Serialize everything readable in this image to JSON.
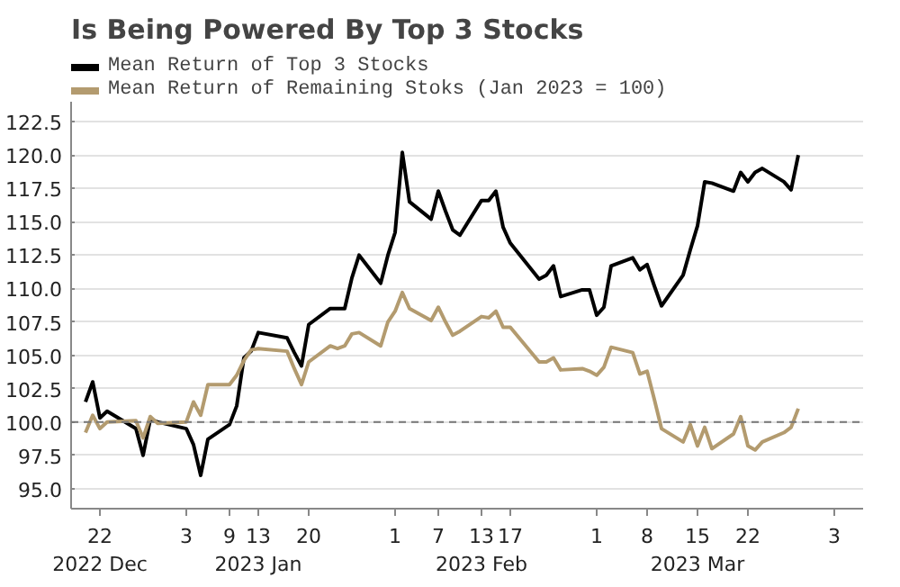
{
  "chart_data": {
    "type": "line",
    "title": "Is Being Powered By Top 3 Stocks",
    "x": [
      "2022-12-20",
      "2022-12-21",
      "2022-12-22",
      "2022-12-23",
      "2022-12-27",
      "2022-12-28",
      "2022-12-29",
      "2022-12-30",
      "2023-01-03",
      "2023-01-04",
      "2023-01-05",
      "2023-01-06",
      "2023-01-09",
      "2023-01-10",
      "2023-01-11",
      "2023-01-12",
      "2023-01-13",
      "2023-01-17",
      "2023-01-18",
      "2023-01-19",
      "2023-01-20",
      "2023-01-23",
      "2023-01-24",
      "2023-01-25",
      "2023-01-26",
      "2023-01-27",
      "2023-01-30",
      "2023-01-31",
      "2023-02-01",
      "2023-02-02",
      "2023-02-03",
      "2023-02-06",
      "2023-02-07",
      "2023-02-08",
      "2023-02-09",
      "2023-02-10",
      "2023-02-13",
      "2023-02-14",
      "2023-02-15",
      "2023-02-16",
      "2023-02-17",
      "2023-02-21",
      "2023-02-22",
      "2023-02-23",
      "2023-02-24",
      "2023-02-27",
      "2023-02-28",
      "2023-03-01",
      "2023-03-02",
      "2023-03-03",
      "2023-03-06",
      "2023-03-07",
      "2023-03-08",
      "2023-03-09",
      "2023-03-10",
      "2023-03-13",
      "2023-03-14",
      "2023-03-15",
      "2023-03-16",
      "2023-03-17",
      "2023-03-20",
      "2023-03-21",
      "2023-03-22",
      "2023-03-23",
      "2023-03-24",
      "2023-03-27",
      "2023-03-28",
      "2023-03-29"
    ],
    "series": [
      {
        "name": "Mean Return of Top 3 Stocks",
        "color": "#000000",
        "values": [
          101.5,
          103.0,
          100.3,
          100.8,
          99.5,
          97.5,
          100.2,
          100.0,
          99.5,
          98.3,
          96.0,
          98.7,
          99.8,
          101.2,
          104.8,
          105.3,
          106.7,
          106.3,
          105.2,
          104.2,
          107.3,
          108.5,
          108.5,
          108.5,
          110.8,
          112.5,
          110.4,
          112.5,
          114.2,
          120.2,
          116.5,
          115.2,
          117.3,
          115.8,
          114.4,
          114.0,
          116.6,
          116.6,
          117.3,
          114.6,
          113.4,
          110.7,
          111.0,
          111.7,
          109.4,
          109.9,
          109.9,
          108.0,
          108.6,
          111.7,
          112.3,
          111.4,
          111.8,
          110.2,
          108.7,
          111.0,
          112.9,
          114.7,
          118.0,
          117.9,
          117.3,
          118.7,
          118.0,
          118.7,
          119.0,
          118.0,
          117.4,
          120.0
        ]
      },
      {
        "name": "Mean Return of Remaining Stoks (Jan 2023 = 100)",
        "color": "#b39b6f",
        "values": [
          99.2,
          100.5,
          99.5,
          100.0,
          100.1,
          98.8,
          100.4,
          99.9,
          100.0,
          101.5,
          100.5,
          102.8,
          102.8,
          103.5,
          104.6,
          105.4,
          105.5,
          105.3,
          104.0,
          102.8,
          104.5,
          105.7,
          105.5,
          105.7,
          106.6,
          106.7,
          105.7,
          107.5,
          108.3,
          109.7,
          108.5,
          107.6,
          108.6,
          107.5,
          106.5,
          106.8,
          107.9,
          107.8,
          108.3,
          107.1,
          107.1,
          104.5,
          104.5,
          104.8,
          103.9,
          104.0,
          103.8,
          103.5,
          104.1,
          105.6,
          105.2,
          103.6,
          103.8,
          101.7,
          99.5,
          98.5,
          99.8,
          98.2,
          99.6,
          98.0,
          99.1,
          100.4,
          98.2,
          97.9,
          98.5,
          99.2,
          99.6,
          101.0
        ]
      }
    ],
    "xlim": [
      "2022-12-18",
      "2023-04-07"
    ],
    "xticks": [
      {
        "value": "2022-12-22",
        "label": "22\n2022 Dec"
      },
      {
        "value": "2023-01-03",
        "label": "3"
      },
      {
        "value": "2023-01-09",
        "label": "9"
      },
      {
        "value": "2023-01-13",
        "label": "13\n2023 Jan"
      },
      {
        "value": "2023-01-20",
        "label": "20"
      },
      {
        "value": "2023-02-01",
        "label": "1"
      },
      {
        "value": "2023-02-07",
        "label": "7"
      },
      {
        "value": "2023-02-13",
        "label": "13\n2023 Feb"
      },
      {
        "value": "2023-02-17",
        "label": "17"
      },
      {
        "value": "2023-03-01",
        "label": "1"
      },
      {
        "value": "2023-03-08",
        "label": "8"
      },
      {
        "value": "2023-03-15",
        "label": "15\n2023 Mar"
      },
      {
        "value": "2023-03-22",
        "label": "22"
      },
      {
        "value": "2023-04-03",
        "label": "3"
      }
    ],
    "ylim": [
      93.5,
      124
    ],
    "yticks": [
      {
        "value": 95,
        "label": "95.0"
      },
      {
        "value": 97.5,
        "label": "97.5"
      },
      {
        "value": 100,
        "label": "100.0"
      },
      {
        "value": 102.5,
        "label": "102.5"
      },
      {
        "value": 105,
        "label": "105.0"
      },
      {
        "value": 107.5,
        "label": "107.5"
      },
      {
        "value": 110,
        "label": "110.0"
      },
      {
        "value": 112.5,
        "label": "112.5"
      },
      {
        "value": 115,
        "label": "115.0"
      },
      {
        "value": 117.5,
        "label": "117.5"
      },
      {
        "value": 120,
        "label": "120.0"
      },
      {
        "value": 122.5,
        "label": "122.5"
      }
    ],
    "ref_lines": [
      {
        "axis": "y",
        "value": 100,
        "color": "#777777",
        "line_style": "dashed"
      }
    ],
    "grid": "y",
    "legend": "top left",
    "line_style": "solid"
  }
}
